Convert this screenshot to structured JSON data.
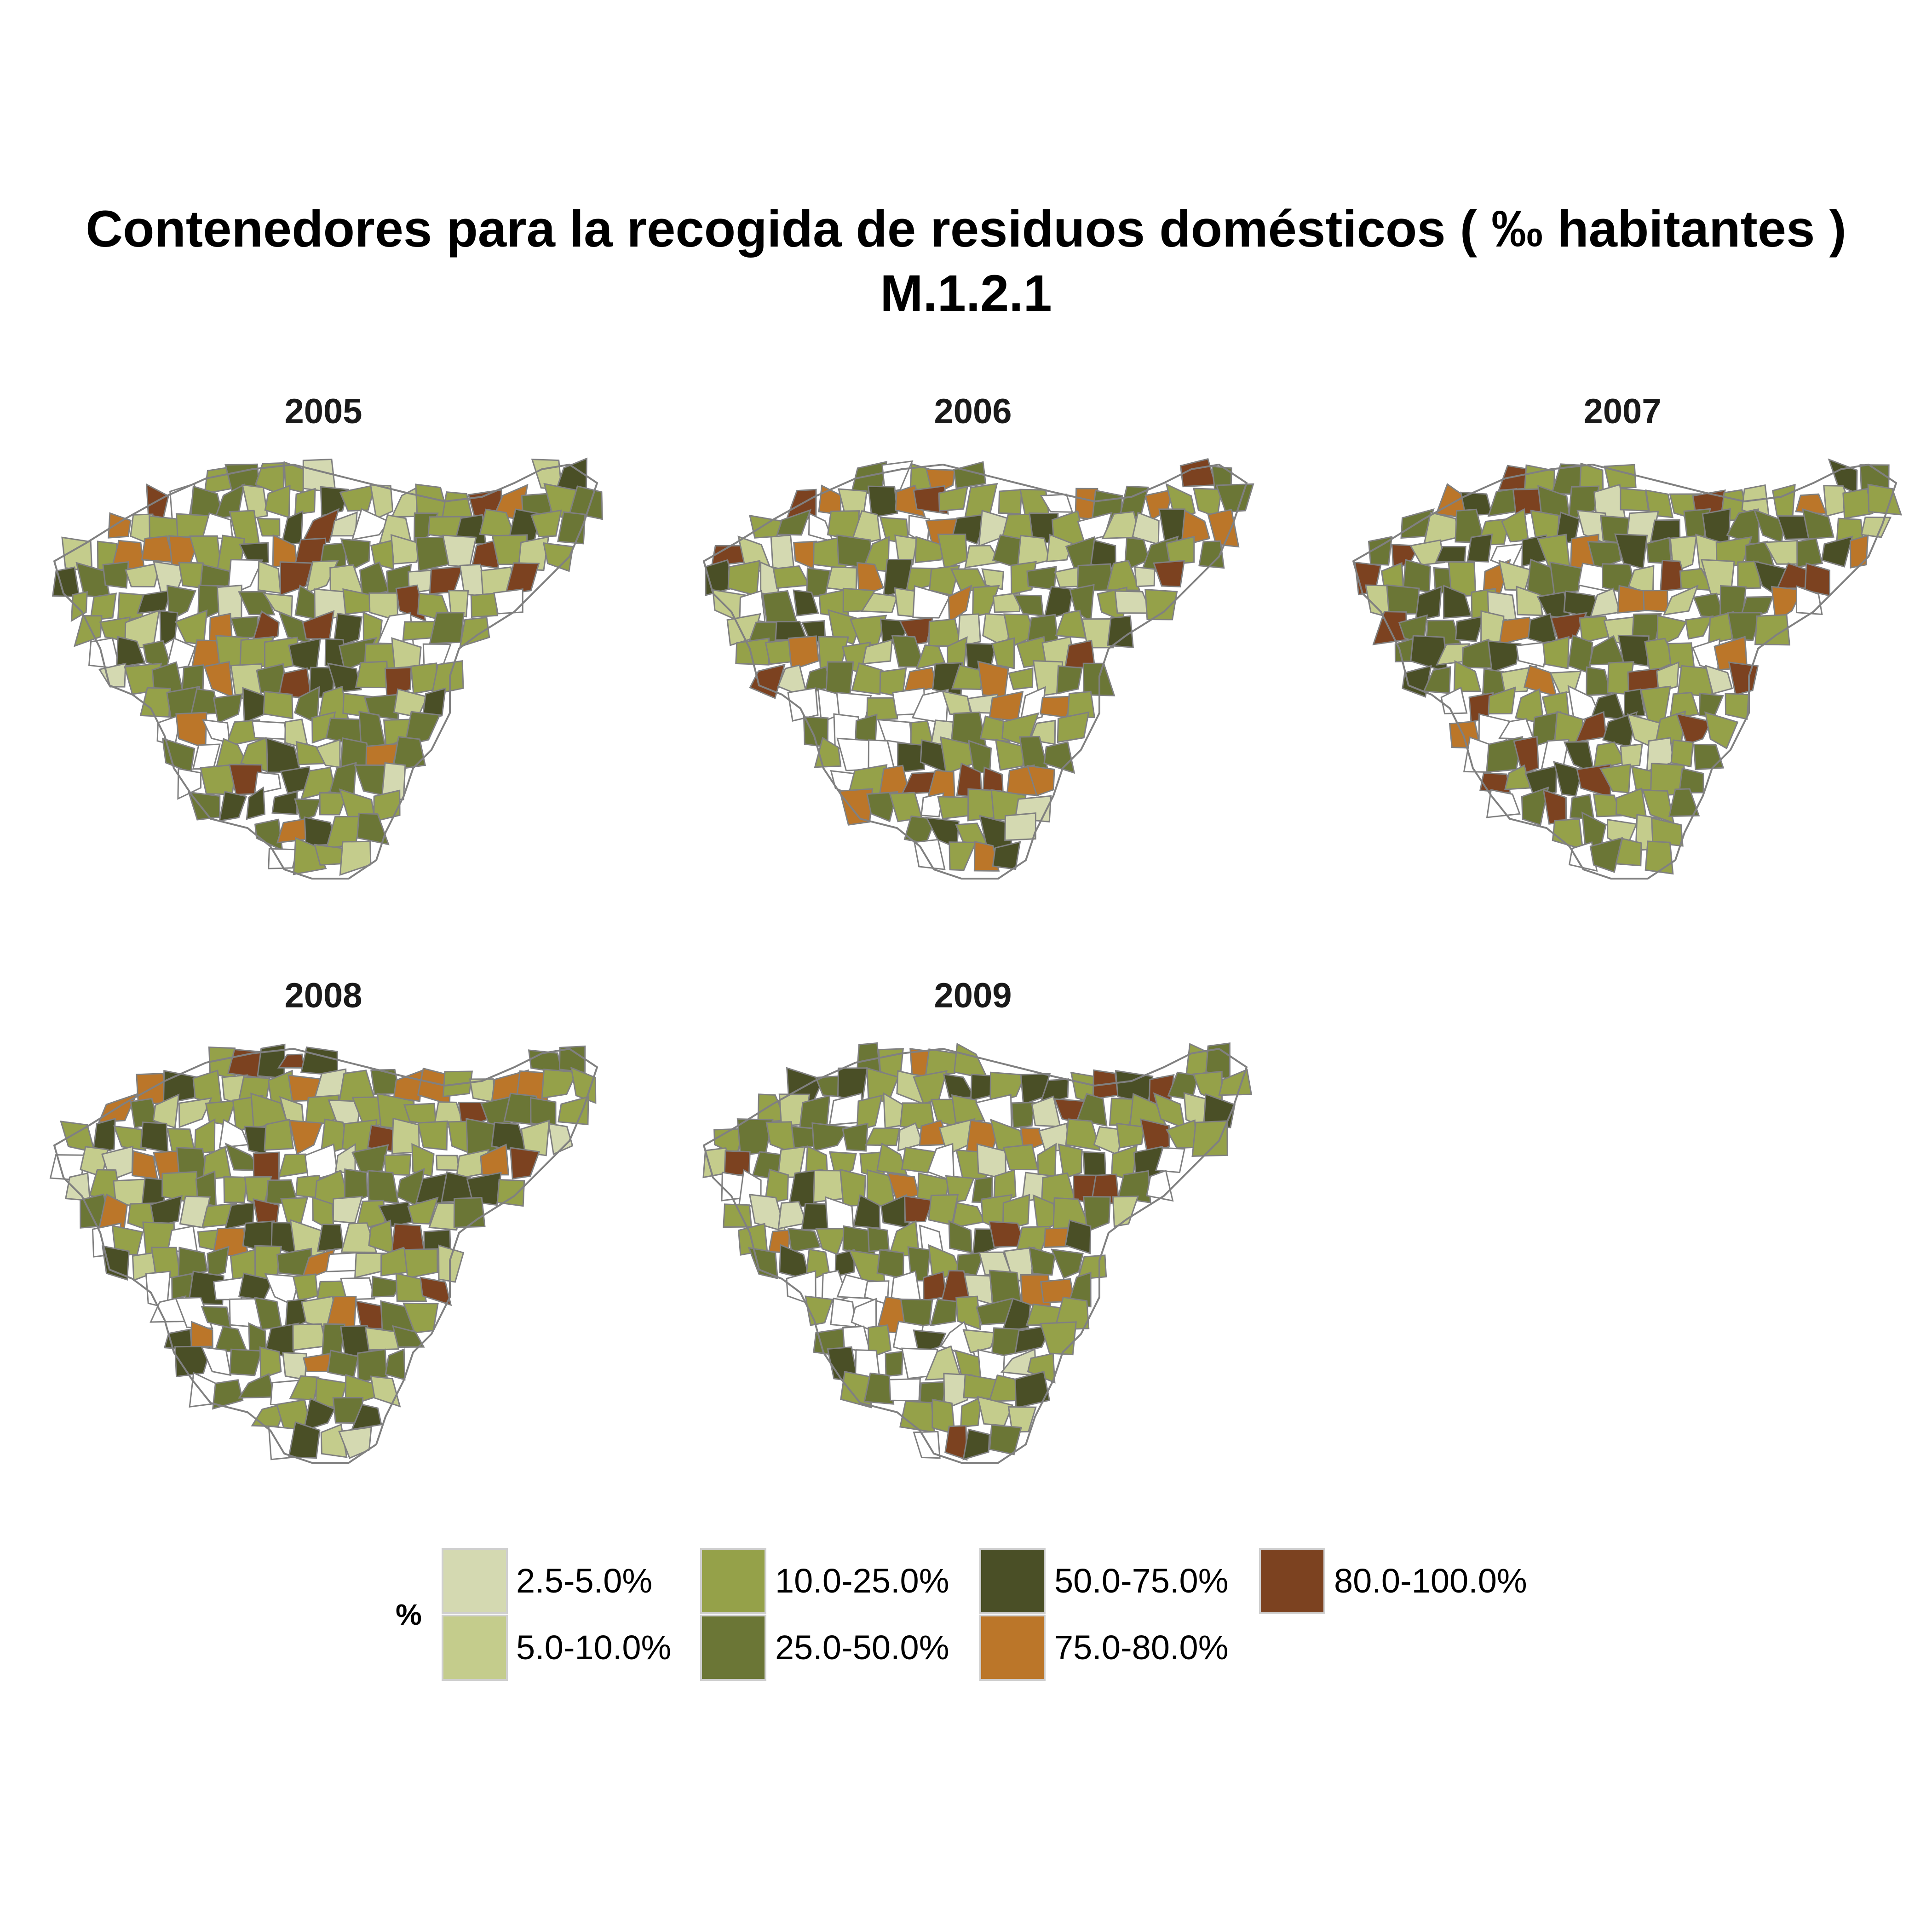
{
  "title": {
    "line1": "Contenedores para la recogida de residuos domésticos ( ‰ habitantes )",
    "line2": "M.1.2.1"
  },
  "panels": [
    {
      "year": "2005"
    },
    {
      "year": "2006"
    },
    {
      "year": "2007"
    },
    {
      "year": "2008"
    },
    {
      "year": "2009"
    }
  ],
  "legend": {
    "title": "%",
    "items": [
      {
        "label": "2.5-5.0%",
        "color": "#d4d9b1"
      },
      {
        "label": "5.0-10.0%",
        "color": "#c4cc8c"
      },
      {
        "label": "10.0-25.0%",
        "color": "#95a149"
      },
      {
        "label": "25.0-50.0%",
        "color": "#6b7636"
      },
      {
        "label": "50.0-75.0%",
        "color": "#4a4f26"
      },
      {
        "label": "75.0-80.0%",
        "color": "#bb7629"
      },
      {
        "label": "80.0-100.0%",
        "color": "#7c4220"
      }
    ]
  },
  "map_style": {
    "no_data_color": "#ffffff",
    "border_color": "#808080"
  }
}
